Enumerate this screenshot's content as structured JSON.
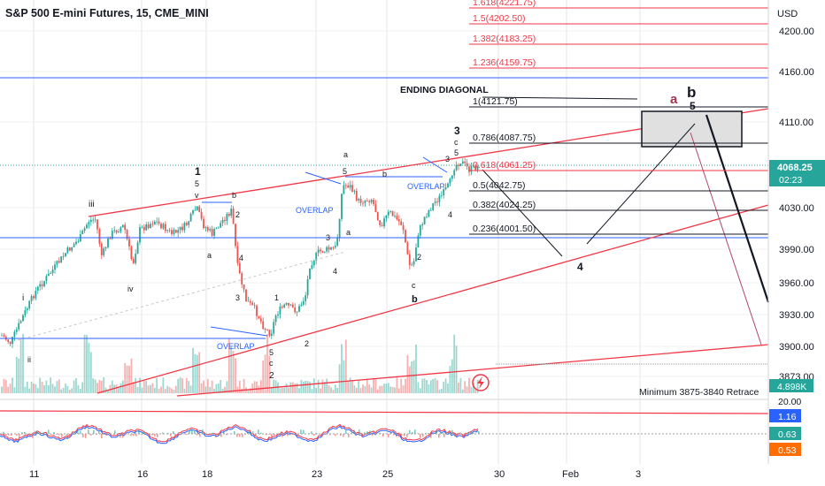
{
  "header": {
    "title": "S&P 500 E-mini Futures, 15, CME_MINI",
    "currency": "USD"
  },
  "colors": {
    "up": "#26a69a",
    "down": "#ef5350",
    "blue": "#2962ff",
    "red": "#f23645",
    "grid": "#e6e6e6",
    "dark": "#131722"
  },
  "chart_data": {
    "type": "candlestick",
    "price_axis": {
      "ticks": [
        "4200.00",
        "4160.00",
        "4110.00",
        "4030.00",
        "3990.00",
        "3960.00",
        "3930.00",
        "3900.00",
        "3873.00"
      ],
      "ylim": [
        3870,
        4225
      ]
    },
    "last_price": {
      "value": "4068.25",
      "countdown": "02:23"
    },
    "volume_label": "4.898K",
    "time_axis": [
      "11",
      "16",
      "18",
      "23",
      "25",
      "30",
      "Feb",
      "3"
    ],
    "fib_levels": [
      {
        "label": "1.618(4221.75)",
        "price": 4221.75
      },
      {
        "label": "1.5(4202.50)",
        "price": 4202.5
      },
      {
        "label": "1.382(4183.25)",
        "price": 4183.25
      },
      {
        "label": "1.236(4159.75)",
        "price": 4159.75
      },
      {
        "label": "1(4121.75)",
        "price": 4121.75
      },
      {
        "label": "0.786(4087.75)",
        "price": 4087.75
      },
      {
        "label": "0.618(4061.25)",
        "price": 4061.25
      },
      {
        "label": "0.5(4042.75)",
        "price": 4042.75
      },
      {
        "label": "0.382(4024.25)",
        "price": 4024.25
      },
      {
        "label": "0.236(4001.50)",
        "price": 4001.5
      }
    ],
    "annotations": {
      "ending_diagonal": "ENDING DIAGONAL",
      "overlap": "OVERLAP",
      "retrace": "Minimum 3875-3840 Retrace",
      "wave_labels": [
        "i",
        "ii",
        "iii",
        "iv",
        "v",
        "1",
        "5",
        "a",
        "b",
        "2",
        "4",
        "3",
        "c",
        "b",
        "a",
        "5",
        "4",
        "3",
        "2",
        "c",
        "b",
        "5",
        "3",
        "4"
      ],
      "target_labels": {
        "wave4": "4",
        "a": "a",
        "b": "b",
        "five": "5"
      }
    },
    "oscillator": {
      "ticks": [
        "20.00"
      ],
      "values": [
        "1.16",
        "0.63",
        "0.53"
      ]
    }
  }
}
